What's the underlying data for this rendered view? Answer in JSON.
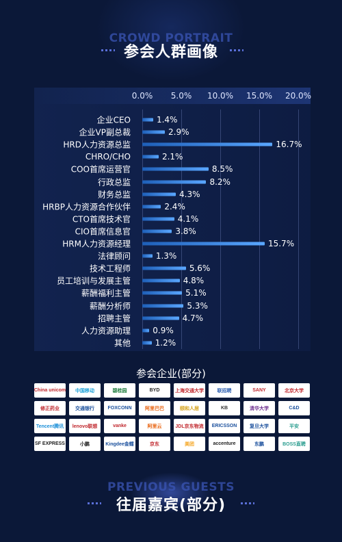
{
  "header": {
    "ghost_title": "CROWD PORTRAIT",
    "title": "参会人群画像"
  },
  "chart_data": {
    "type": "bar",
    "orientation": "horizontal",
    "title": "",
    "xlabel": "",
    "ylabel": "",
    "xlim": [
      0,
      20
    ],
    "grid": true,
    "tick_labels": [
      "0.0%",
      "5.0%",
      "10.0%",
      "15.0%",
      "20.0%"
    ],
    "categories": [
      "企业CEO",
      "企业VP副总裁",
      "HRD人力资源总监",
      "CHRO/CHO",
      "COO首席运营官",
      "行政总监",
      "财务总监",
      "HRBP人力资源合作伙伴",
      "CTO首席技术官",
      "CIO首席信息官",
      "HRM人力资源经理",
      "法律顾问",
      "技术工程师",
      "员工培训与发展主管",
      "薪酬福利主管",
      "薪酬分析师",
      "招聘主管",
      "人力资源助理",
      "其他"
    ],
    "values": [
      1.4,
      2.9,
      16.7,
      2.1,
      8.5,
      8.2,
      4.3,
      2.4,
      4.1,
      3.8,
      15.7,
      1.3,
      5.6,
      4.8,
      5.1,
      5.3,
      4.7,
      0.9,
      1.2
    ],
    "value_labels": [
      "1.4%",
      "2.9%",
      "16.7%",
      "2.1%",
      "8.5%",
      "8.2%",
      "4.3%",
      "2.4%",
      "4.1%",
      "3.8%",
      "15.7%",
      "1.3%",
      "5.6%",
      "4.8%",
      "5.1%",
      "5.3%",
      "4.7%",
      "0.9%",
      "1.2%"
    ],
    "bar_color": "#3f8ff0"
  },
  "companies": {
    "title": "参会企业(部分)",
    "logos": [
      {
        "name": "China unicom",
        "color": "#c0272d"
      },
      {
        "name": "中国移动",
        "color": "#1aa0d8"
      },
      {
        "name": "碧桂园",
        "color": "#1a7a3a"
      },
      {
        "name": "BYD",
        "color": "#222222"
      },
      {
        "name": "上海交通大学",
        "color": "#c0272d"
      },
      {
        "name": "联招聘",
        "color": "#2a5db0"
      },
      {
        "name": "SANY",
        "color": "#c0272d"
      },
      {
        "name": "北京大学",
        "color": "#c0272d"
      },
      {
        "name": "修正药业",
        "color": "#c0272d"
      },
      {
        "name": "交通银行",
        "color": "#1a4f9c"
      },
      {
        "name": "FOXCONN",
        "color": "#1a4f9c"
      },
      {
        "name": "阿里巴巴",
        "color": "#e8610d"
      },
      {
        "name": "颐和人居",
        "color": "#d4a017"
      },
      {
        "name": "KB",
        "color": "#333333"
      },
      {
        "name": "清华大学",
        "color": "#6a2a8c"
      },
      {
        "name": "C&D",
        "color": "#1a4f9c"
      },
      {
        "name": "Tencent腾讯",
        "color": "#1a8fd8"
      },
      {
        "name": "lenovo联想",
        "color": "#c0272d"
      },
      {
        "name": "vanke",
        "color": "#c0272d"
      },
      {
        "name": "阿里云",
        "color": "#e8610d"
      },
      {
        "name": "JDL京东物流",
        "color": "#c0272d"
      },
      {
        "name": "ERICSSON",
        "color": "#1a4f9c"
      },
      {
        "name": "复旦大学",
        "color": "#1a4f9c"
      },
      {
        "name": "平安",
        "color": "#2a9d8f"
      },
      {
        "name": "SF EXPRESS",
        "color": "#222222"
      },
      {
        "name": "小鹏",
        "color": "#222222"
      },
      {
        "name": "Kingdee金蝶",
        "color": "#1a4f9c"
      },
      {
        "name": "京东",
        "color": "#c0272d"
      },
      {
        "name": "美团",
        "color": "#f5a623"
      },
      {
        "name": "accenture",
        "color": "#222222"
      },
      {
        "name": "东鹏",
        "color": "#1a4f9c"
      },
      {
        "name": "BOSS直聘",
        "color": "#2a9d8f"
      }
    ]
  },
  "footer": {
    "ghost_title": "PREVIOUS GUESTS",
    "title": "往届嘉宾(部分)"
  }
}
